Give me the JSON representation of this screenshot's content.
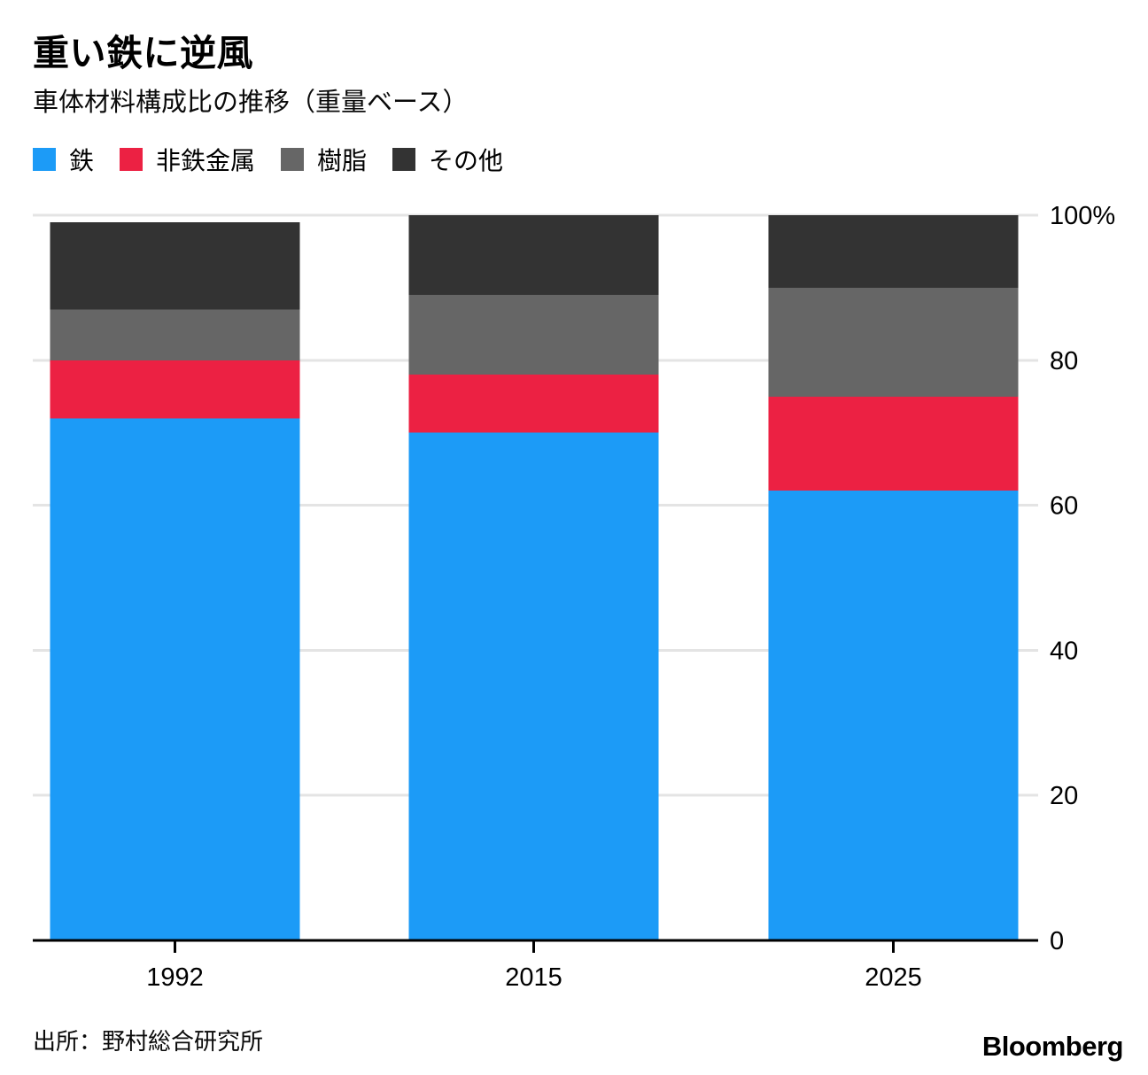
{
  "header": {
    "title": "重い鉄に逆風",
    "subtitle": "車体材料構成比の推移（重量ベース）"
  },
  "footer": {
    "source": "出所：野村総合研究所",
    "brand": "Bloomberg"
  },
  "colors": {
    "iron_blue": "#1c9bf7",
    "nonferrous_red": "#ec2143",
    "resin_gray": "#666666",
    "other_dark": "#333333",
    "gridline": "#e4e4e4",
    "axis_baseline": "#000000"
  },
  "chart_data": {
    "type": "bar",
    "stacked": true,
    "unit": "%",
    "title": "重い鉄に逆風",
    "subtitle": "車体材料構成比の推移（重量ベース）",
    "categories": [
      "1992",
      "2015",
      "2025"
    ],
    "series": [
      {
        "name": "鉄",
        "color": "#1c9bf7",
        "values": [
          72,
          70,
          62
        ]
      },
      {
        "name": "非鉄金属",
        "color": "#ec2143",
        "values": [
          8,
          8,
          13
        ]
      },
      {
        "name": "樹脂",
        "color": "#666666",
        "values": [
          7,
          11,
          15
        ]
      },
      {
        "name": "その他",
        "color": "#333333",
        "values": [
          12,
          11,
          10
        ]
      }
    ],
    "stack_totals": [
      99,
      100,
      100
    ],
    "ylim": [
      0,
      100
    ],
    "yticks": [
      0,
      20,
      40,
      60,
      80,
      100
    ],
    "ytick_labels": [
      "0",
      "20",
      "40",
      "60",
      "80",
      "100%"
    ],
    "grid": "horizontal",
    "legend_position": "top",
    "source": "出所：野村総合研究所"
  }
}
